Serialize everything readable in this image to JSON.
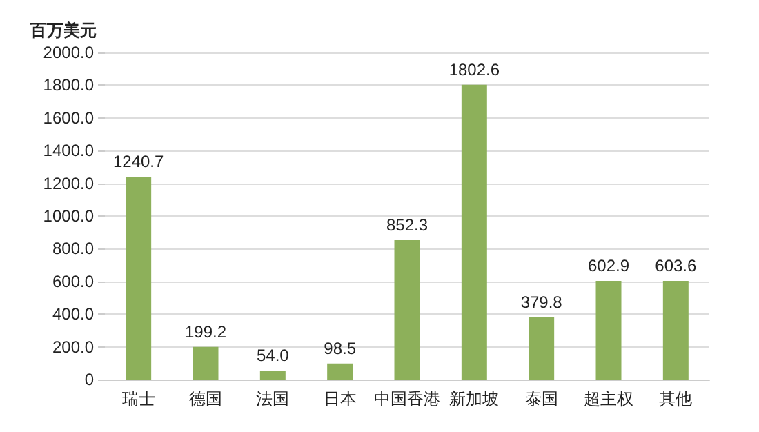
{
  "chart_data": {
    "type": "bar",
    "ylabel": "百万美元",
    "categories": [
      "瑞士",
      "德国",
      "法国",
      "日本",
      "中国香港",
      "新加坡",
      "泰国",
      "超主权",
      "其他"
    ],
    "values": [
      1240.7,
      199.2,
      54.0,
      98.5,
      852.3,
      1802.6,
      379.8,
      602.9,
      603.6
    ],
    "value_labels": [
      "1240.7",
      "199.2",
      "54.0",
      "98.5",
      "852.3",
      "1802.6",
      "379.8",
      "602.9",
      "603.6"
    ],
    "color": "#8db05a",
    "ylim": [
      0,
      2000
    ],
    "yticks": [
      {
        "value": 0,
        "label": "0"
      },
      {
        "value": 200,
        "label": "200.0"
      },
      {
        "value": 400,
        "label": "400.0"
      },
      {
        "value": 600,
        "label": "600.0"
      },
      {
        "value": 800,
        "label": "800.0"
      },
      {
        "value": 1000,
        "label": "1000.0"
      },
      {
        "value": 1200,
        "label": "1200.0"
      },
      {
        "value": 1400,
        "label": "1400.0"
      },
      {
        "value": 1600,
        "label": "1600.0"
      },
      {
        "value": 1800,
        "label": "1800.0"
      },
      {
        "value": 2000,
        "label": "2000.0"
      }
    ],
    "grid": "y"
  }
}
